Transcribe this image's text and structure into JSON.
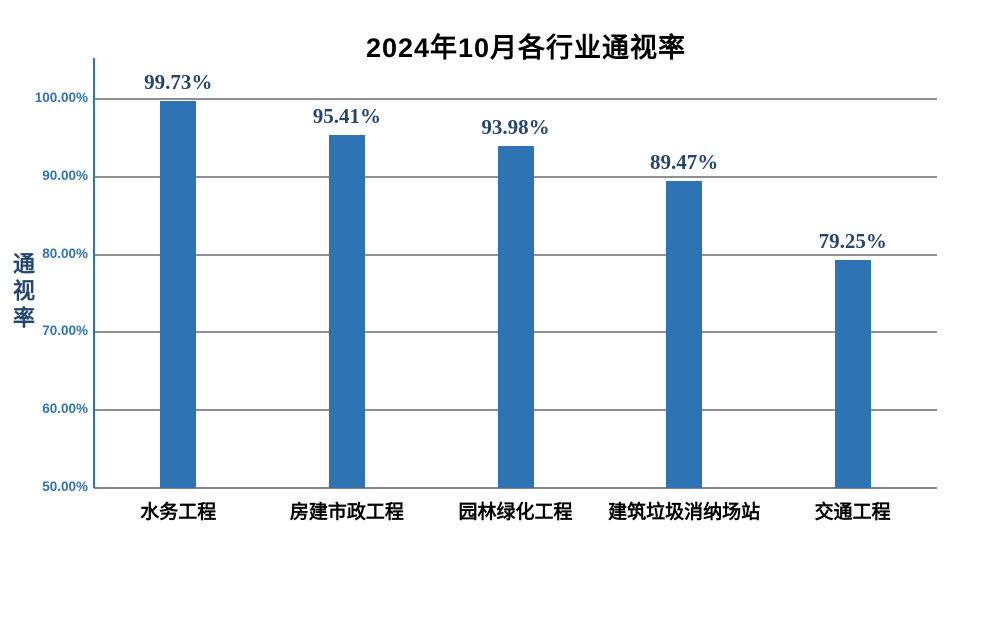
{
  "title": "2024年10月各行业通视率",
  "chart_data": {
    "type": "bar",
    "title": "2024年10月各行业通视率",
    "xlabel": "",
    "ylabel": "通视率",
    "categories": [
      "水务工程",
      "房建市政工程",
      "园林绿化工程",
      "建筑垃圾消纳场站",
      "交通工程"
    ],
    "values": [
      99.73,
      95.41,
      93.98,
      89.47,
      79.25
    ],
    "value_labels": [
      "99.73%",
      "95.41%",
      "93.98%",
      "89.47%",
      "79.25%"
    ],
    "ylim": [
      50,
      100
    ],
    "ytick_step": 10,
    "ytick_labels": [
      "50.00%",
      "60.00%",
      "70.00%",
      "80.00%",
      "90.00%",
      "100.00%"
    ],
    "grid": true,
    "legend": "none",
    "colors": {
      "bar": "#2E74B5",
      "axis_line": "#2E74B5",
      "tick_label": "#2E74B5",
      "value_label": "#24466F",
      "ylabel": "#24466F",
      "grid_line": "#8F8F8F",
      "baseline": "#858585",
      "title": "#000000",
      "category_label": "#000000",
      "background": "#FFFFFF"
    }
  }
}
